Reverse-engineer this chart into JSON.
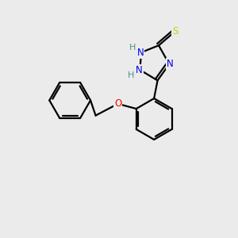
{
  "background_color": "#ebebeb",
  "atom_colors": {
    "C": "#000000",
    "N": "#0000ee",
    "O": "#ff0000",
    "S": "#cccc00",
    "H": "#4a9090"
  },
  "figsize": [
    3.0,
    3.0
  ],
  "dpi": 100,
  "xlim": [
    0,
    10
  ],
  "ylim": [
    0,
    10
  ]
}
